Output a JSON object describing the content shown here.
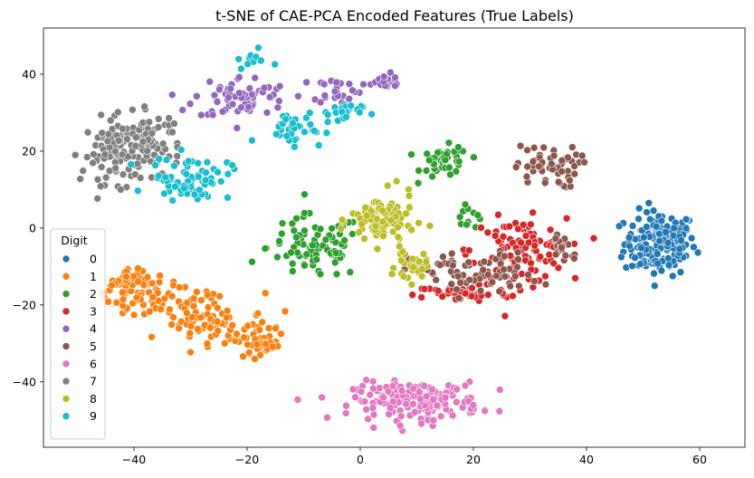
{
  "chart_data": {
    "type": "scatter",
    "title": "t-SNE of CAE-PCA Encoded Features (True Labels)",
    "xlabel": "",
    "ylabel": "",
    "xlim": [
      -56,
      68
    ],
    "ylim": [
      -57,
      52
    ],
    "x_ticks": [
      -40,
      -20,
      0,
      20,
      40,
      60
    ],
    "y_ticks": [
      -40,
      -20,
      0,
      20,
      40
    ],
    "grid": false,
    "legend": {
      "title": "Digit",
      "placement": "center-left"
    },
    "series": [
      {
        "name": "0",
        "color": "#1f77b4",
        "clusters": [
          {
            "center": [
              53,
              -4
            ],
            "spread": [
              4.5,
              6
            ],
            "count": 170,
            "shape": "blob"
          }
        ]
      },
      {
        "name": "1",
        "color": "#ff7f0e",
        "clusters": [
          {
            "center": [
              -29,
              -22
            ],
            "spread": [
              17,
              2.8
            ],
            "count": 220,
            "shape": "band",
            "angle_deg": -31
          }
        ]
      },
      {
        "name": "2",
        "color": "#2ca02c",
        "clusters": [
          {
            "center": [
              -8,
              -5
            ],
            "spread": [
              6,
              6
            ],
            "count": 90,
            "shape": "blob"
          },
          {
            "center": [
              15,
              17
            ],
            "spread": [
              3,
              3
            ],
            "count": 45,
            "shape": "blob"
          },
          {
            "center": [
              19,
              4
            ],
            "spread": [
              2,
              3
            ],
            "count": 12,
            "shape": "blob"
          }
        ]
      },
      {
        "name": "3",
        "color": "#d62728",
        "clusters": [
          {
            "center": [
              28,
              -6
            ],
            "spread": [
              6,
              6
            ],
            "count": 110,
            "shape": "blob"
          },
          {
            "center": [
              18,
              -17
            ],
            "spread": [
              6,
              1.5
            ],
            "count": 50,
            "shape": "blob"
          }
        ]
      },
      {
        "name": "4",
        "color": "#9467bd",
        "clusters": [
          {
            "center": [
              -21,
              34
            ],
            "spread": [
              6,
              4
            ],
            "count": 70,
            "shape": "blob"
          },
          {
            "center": [
              -4,
              36
            ],
            "spread": [
              3,
              2.5
            ],
            "count": 25,
            "shape": "blob"
          },
          {
            "center": [
              4,
              38
            ],
            "spread": [
              3,
              1.5
            ],
            "count": 22,
            "shape": "blob"
          }
        ]
      },
      {
        "name": "5",
        "color": "#8c564b",
        "clusters": [
          {
            "center": [
              33,
              16
            ],
            "spread": [
              4,
              4
            ],
            "count": 55,
            "shape": "blob"
          },
          {
            "center": [
              20,
              -12
            ],
            "spread": [
              8,
              4
            ],
            "count": 80,
            "shape": "blob"
          },
          {
            "center": [
              36,
              -5
            ],
            "spread": [
              2,
              3
            ],
            "count": 20,
            "shape": "blob"
          }
        ]
      },
      {
        "name": "6",
        "color": "#e377c2",
        "clusters": [
          {
            "center": [
              10,
              -45
            ],
            "spread": [
              8,
              3.5
            ],
            "count": 180,
            "shape": "blob"
          }
        ]
      },
      {
        "name": "7",
        "color": "#7f7f7f",
        "clusters": [
          {
            "center": [
              -42,
              20
            ],
            "spread": [
              5,
              6
            ],
            "count": 130,
            "shape": "blob"
          },
          {
            "center": [
              -37,
              24
            ],
            "spread": [
              4,
              4
            ],
            "count": 40,
            "shape": "blob"
          }
        ]
      },
      {
        "name": "8",
        "color": "#bcbd22",
        "clusters": [
          {
            "center": [
              4,
              2
            ],
            "spread": [
              4,
              5
            ],
            "count": 90,
            "shape": "blob"
          },
          {
            "center": [
              9,
              -10
            ],
            "spread": [
              2,
              3
            ],
            "count": 30,
            "shape": "blob"
          }
        ]
      },
      {
        "name": "9",
        "color": "#17becf",
        "clusters": [
          {
            "center": [
              -30,
              13
            ],
            "spread": [
              5,
              4
            ],
            "count": 70,
            "shape": "blob"
          },
          {
            "center": [
              -12,
              26
            ],
            "spread": [
              4,
              3
            ],
            "count": 35,
            "shape": "blob"
          },
          {
            "center": [
              -4,
              30
            ],
            "spread": [
              3,
              2
            ],
            "count": 25,
            "shape": "blob"
          },
          {
            "center": [
              -19,
              44
            ],
            "spread": [
              2,
              2
            ],
            "count": 12,
            "shape": "blob"
          }
        ]
      }
    ]
  }
}
